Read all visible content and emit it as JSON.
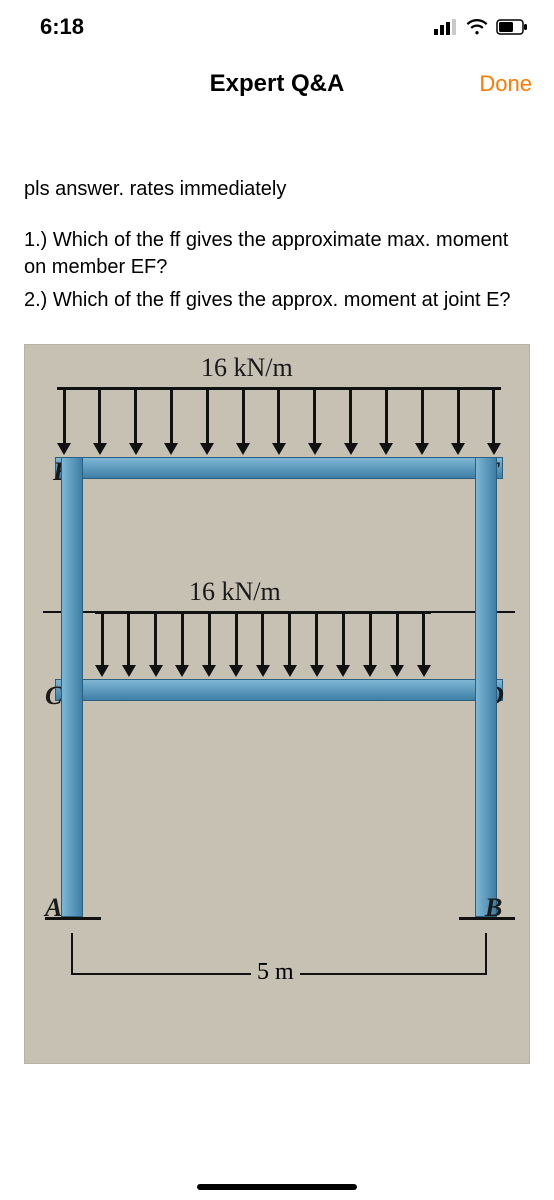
{
  "status": {
    "time": "6:18"
  },
  "nav": {
    "title": "Expert Q&A",
    "done_label": "Done",
    "done_color": "#ff7a00"
  },
  "question": {
    "intro": "pls answer. rates immediately",
    "part1": "1.) Which of the ff gives the approximate max. moment on member EF?",
    "part2": "2.) Which of the ff gives the approx. moment at joint E?"
  },
  "diagram": {
    "type": "engineering-frame",
    "background_color": "#c7c1b4",
    "member_color_light": "#7fb6d4",
    "member_color_dark": "#3e7fa6",
    "member_border": "#2b5f82",
    "arrow_color": "#111111",
    "span_m": 5,
    "load_top_kn_m": 16,
    "load_mid_kn_m": 16,
    "top_load_label": "16 kN/m",
    "mid_load_label": "16 kN/m",
    "span_label": "5 m",
    "top_arrow_count": 13,
    "mid_arrow_count": 13,
    "joints": {
      "E": "E",
      "F": "F",
      "C": "C",
      "D": "D",
      "A": "A",
      "B": "B"
    }
  }
}
